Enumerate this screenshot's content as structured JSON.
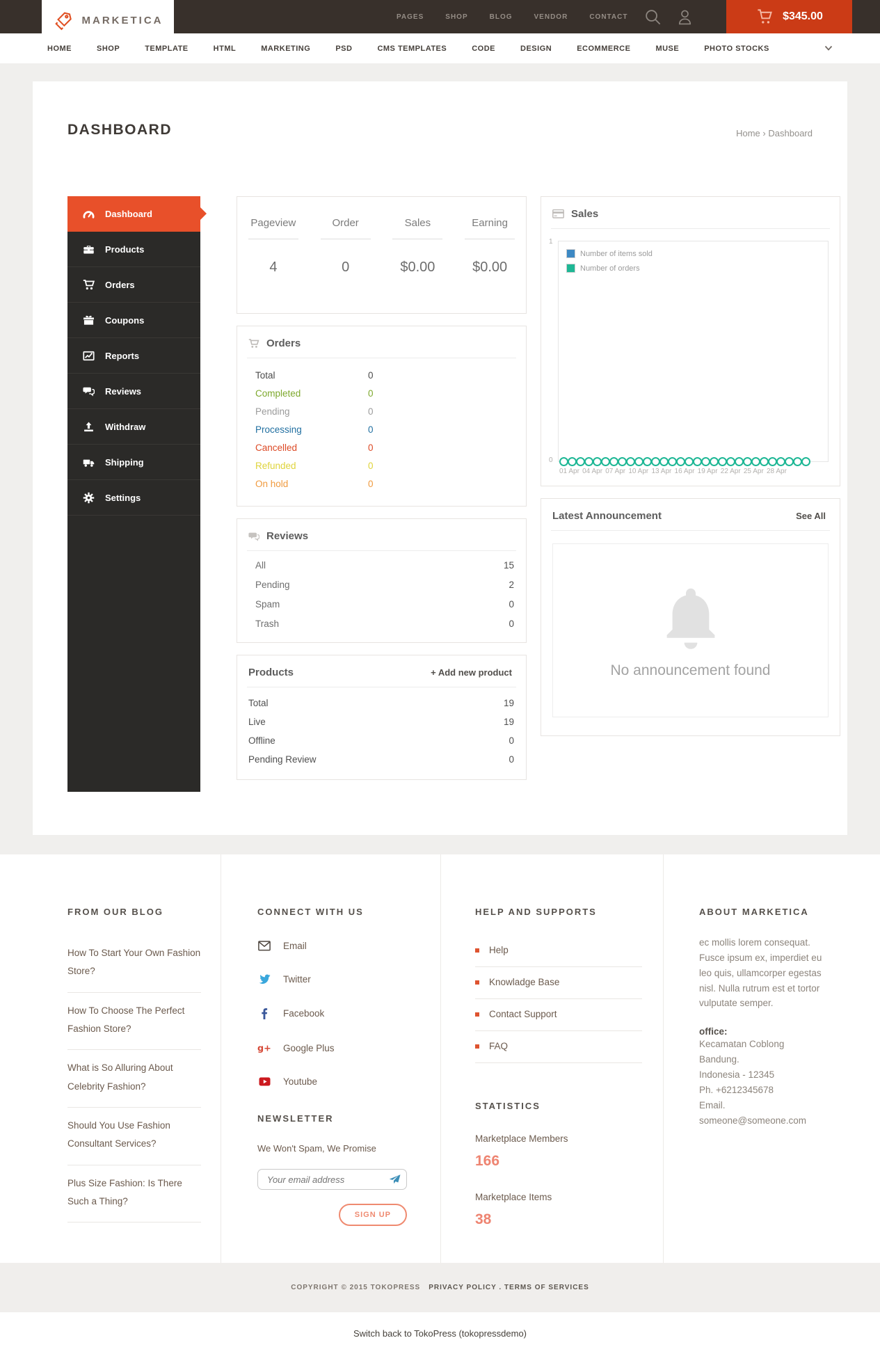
{
  "topbar": {
    "brand": "MARKETICA",
    "brand_icon": "price-tags-icon",
    "nav": [
      {
        "label": "PAGES"
      },
      {
        "label": "SHOP"
      },
      {
        "label": "BLOG"
      },
      {
        "label": "VENDOR"
      },
      {
        "label": "CONTACT"
      }
    ],
    "cart_total": "$345.00"
  },
  "mainnav": {
    "items": [
      {
        "label": "HOME"
      },
      {
        "label": "SHOP"
      },
      {
        "label": "TEMPLATE"
      },
      {
        "label": "HTML"
      },
      {
        "label": "MARKETING"
      },
      {
        "label": "PSD"
      },
      {
        "label": "CMS TEMPLATES"
      },
      {
        "label": "CODE"
      },
      {
        "label": "DESIGN"
      },
      {
        "label": "ECOMMERCE"
      },
      {
        "label": "MUSE"
      },
      {
        "label": "PHOTO STOCKS"
      }
    ]
  },
  "page": {
    "title": "DASHBOARD",
    "breadcrumb": {
      "home": "Home",
      "sep": "›",
      "current": "Dashboard"
    }
  },
  "sidebar": {
    "items": [
      {
        "label": "Dashboard",
        "icon": "gauge-icon",
        "active": true
      },
      {
        "label": "Products",
        "icon": "briefcase-icon"
      },
      {
        "label": "Orders",
        "icon": "cart-icon"
      },
      {
        "label": "Coupons",
        "icon": "gift-icon"
      },
      {
        "label": "Reports",
        "icon": "chart-line-icon"
      },
      {
        "label": "Reviews",
        "icon": "comments-icon"
      },
      {
        "label": "Withdraw",
        "icon": "upload-icon"
      },
      {
        "label": "Shipping",
        "icon": "truck-icon"
      },
      {
        "label": "Settings",
        "icon": "gear-icon"
      }
    ]
  },
  "stats": {
    "cols": [
      {
        "label": "Pageview",
        "value": "4"
      },
      {
        "label": "Order",
        "value": "0"
      },
      {
        "label": "Sales",
        "value": "$0.00"
      },
      {
        "label": "Earning",
        "value": "$0.00"
      }
    ]
  },
  "orders": {
    "title": "Orders",
    "icon": "cart-icon",
    "rows": [
      {
        "label": "Total",
        "value": "0",
        "color": "#4a4a4a"
      },
      {
        "label": "Completed",
        "value": "0",
        "color": "#7da82c"
      },
      {
        "label": "Pending",
        "value": "0",
        "color": "#9b9b9b"
      },
      {
        "label": "Processing",
        "value": "0",
        "color": "#2270a1"
      },
      {
        "label": "Cancelled",
        "value": "0",
        "color": "#dc4925"
      },
      {
        "label": "Refunded",
        "value": "0",
        "color": "#dfd43b"
      },
      {
        "label": "On hold",
        "value": "0",
        "color": "#f09a3e"
      }
    ]
  },
  "reviews": {
    "title": "Reviews",
    "icon": "comments-icon",
    "rows": [
      {
        "label": "All",
        "value": "15"
      },
      {
        "label": "Pending",
        "value": "2"
      },
      {
        "label": "Spam",
        "value": "0"
      },
      {
        "label": "Trash",
        "value": "0"
      }
    ]
  },
  "products": {
    "title": "Products",
    "add_label": "+ Add new product",
    "rows": [
      {
        "label": "Total",
        "value": "19"
      },
      {
        "label": "Live",
        "value": "19"
      },
      {
        "label": "Offline",
        "value": "0"
      },
      {
        "label": "Pending Review",
        "value": "0"
      }
    ]
  },
  "sales": {
    "title": "Sales",
    "icon": "credit-card-icon",
    "chart": {
      "type": "line",
      "legend": [
        {
          "label": "Number of items sold",
          "color": "#3d89c4"
        },
        {
          "label": "Number of orders",
          "color": "#1eb795"
        }
      ],
      "y_top": "1",
      "y_bottom": "0",
      "x_labels": [
        "01 Apr",
        "04 Apr",
        "07 Apr",
        "10 Apr",
        "13 Apr",
        "16 Apr",
        "19 Apr",
        "22 Apr",
        "25 Apr",
        "28 Apr"
      ],
      "marker_count": 30,
      "all_points_value": 0
    }
  },
  "announcement": {
    "title": "Latest Announcement",
    "see_all": "See All",
    "icon": "bell-icon",
    "empty_text": "No announcement found"
  },
  "footer": {
    "blog": {
      "heading": "FROM OUR BLOG",
      "posts": [
        {
          "title": "How To Start Your Own Fashion Store?"
        },
        {
          "title": "How To Choose The Perfect Fashion Store?"
        },
        {
          "title": "What is So Alluring About Celebrity Fashion?"
        },
        {
          "title": "Should You Use Fashion Consultant Services?"
        },
        {
          "title": "Plus Size Fashion: Is There Such a Thing?"
        }
      ]
    },
    "connect": {
      "heading": "CONNECT WITH US",
      "links": [
        {
          "label": "Email",
          "icon": "email-icon"
        },
        {
          "label": "Twitter",
          "icon": "twitter-icon"
        },
        {
          "label": "Facebook",
          "icon": "facebook-icon"
        },
        {
          "label": "Google Plus",
          "icon": "google-plus-icon"
        },
        {
          "label": "Youtube",
          "icon": "youtube-icon"
        }
      ]
    },
    "newsletter": {
      "heading": "NEWSLETTER",
      "tagline": "We Won't Spam, We Promise",
      "placeholder": "Your email address",
      "submit_icon": "paper-plane-icon",
      "button": "SIGN UP"
    },
    "help": {
      "heading": "HELP AND SUPPORTS",
      "links": [
        {
          "label": "Help"
        },
        {
          "label": "Knowladge Base"
        },
        {
          "label": "Contact Support"
        },
        {
          "label": "FAQ"
        }
      ]
    },
    "statistics": {
      "heading": "STATISTICS",
      "items": [
        {
          "label": "Marketplace Members",
          "value": "166"
        },
        {
          "label": "Marketplace Items",
          "value": "38"
        }
      ]
    },
    "about": {
      "heading": "ABOUT MARKETICA",
      "text": "ec mollis lorem consequat. Fusce ipsum ex, imperdiet eu leo quis, ullamcorper egestas nisl. Nulla rutrum est et tortor vulputate semper.",
      "office_label": "office:",
      "office_lines": [
        {
          "line": "Kecamatan Coblong"
        },
        {
          "line": "Bandung."
        },
        {
          "line": "Indonesia - 12345"
        },
        {
          "line": "Ph. +6212345678"
        },
        {
          "line": "Email. someone@someone.com"
        }
      ]
    }
  },
  "copyright": {
    "text": "COPYRIGHT © 2015 TOKOPRESS",
    "links": "PRIVACY POLICY . TERMS OF SERVICES"
  },
  "adminbar": {
    "text": "Switch back to TokoPress (tokopressdemo)"
  },
  "colors": {
    "header_brown": "#38302b",
    "accent_orange": "#e8502a",
    "cart_red": "#cb3b16",
    "page_bg": "#f0efed",
    "stat_number_salmon": "#ee8471"
  }
}
